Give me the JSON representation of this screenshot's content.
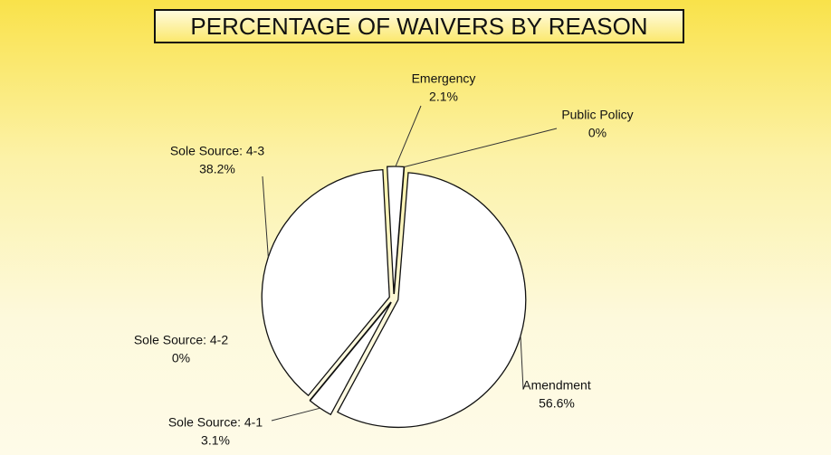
{
  "chart_data": {
    "type": "pie",
    "title": "PERCENTAGE OF WAIVERS BY REASON",
    "categories": [
      "Emergency",
      "Public Policy",
      "Amendment",
      "Sole Source: 4-1",
      "Sole Source: 4-2",
      "Sole Source: 4-3"
    ],
    "values": [
      2.1,
      0,
      56.6,
      3.1,
      0,
      38.2
    ],
    "value_labels": [
      "2.1%",
      "0%",
      "56.6%",
      "3.1%",
      "0%",
      "38.2%"
    ],
    "color": "#ffffff"
  }
}
